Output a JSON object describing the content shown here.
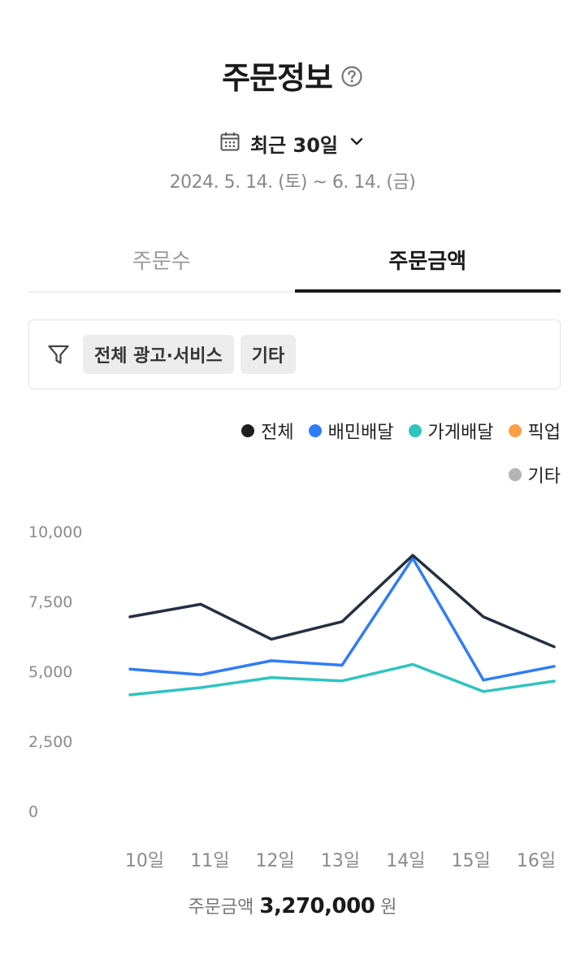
{
  "header": {
    "title": "주문정보",
    "help_icon": "question-circle-icon"
  },
  "period": {
    "label": "최근 30일",
    "date_range": "2024. 5. 14. (토) ~ 6. 14. (금)"
  },
  "tabs": [
    {
      "label": "주문수",
      "active": false
    },
    {
      "label": "주문금액",
      "active": true
    }
  ],
  "filter": {
    "icon": "filter-icon",
    "chips": [
      "전체 광고·서비스",
      "기타"
    ]
  },
  "legend": [
    {
      "label": "전체",
      "color": "#1e1e1e"
    },
    {
      "label": "배민배달",
      "color": "#2f7df6"
    },
    {
      "label": "가게배달",
      "color": "#2ec4bf"
    },
    {
      "label": "픽업",
      "color": "#ff9f45"
    },
    {
      "label": "기타",
      "color": "#b4b4b4"
    }
  ],
  "chart_data": {
    "type": "line",
    "categories": [
      "10일",
      "11일",
      "12일",
      "13일",
      "14일",
      "15일",
      "16일"
    ],
    "y_ticks": [
      "10,000",
      "7,500",
      "5,000",
      "2,500",
      "0"
    ],
    "ylim": [
      0,
      10000
    ],
    "series": [
      {
        "name": "전체",
        "color": "#243041",
        "values": [
          6950,
          7400,
          6150,
          6780,
          9150,
          6950,
          5880
        ]
      },
      {
        "name": "배민배달",
        "color": "#2f7df6",
        "values": [
          5080,
          4880,
          5380,
          5220,
          9050,
          4690,
          5180
        ]
      },
      {
        "name": "가게배달",
        "color": "#2ec4bf",
        "values": [
          4160,
          4420,
          4780,
          4660,
          5250,
          4280,
          4650
        ]
      }
    ]
  },
  "summary": {
    "label": "주문금액",
    "amount": "3,270,000",
    "unit": "원"
  }
}
